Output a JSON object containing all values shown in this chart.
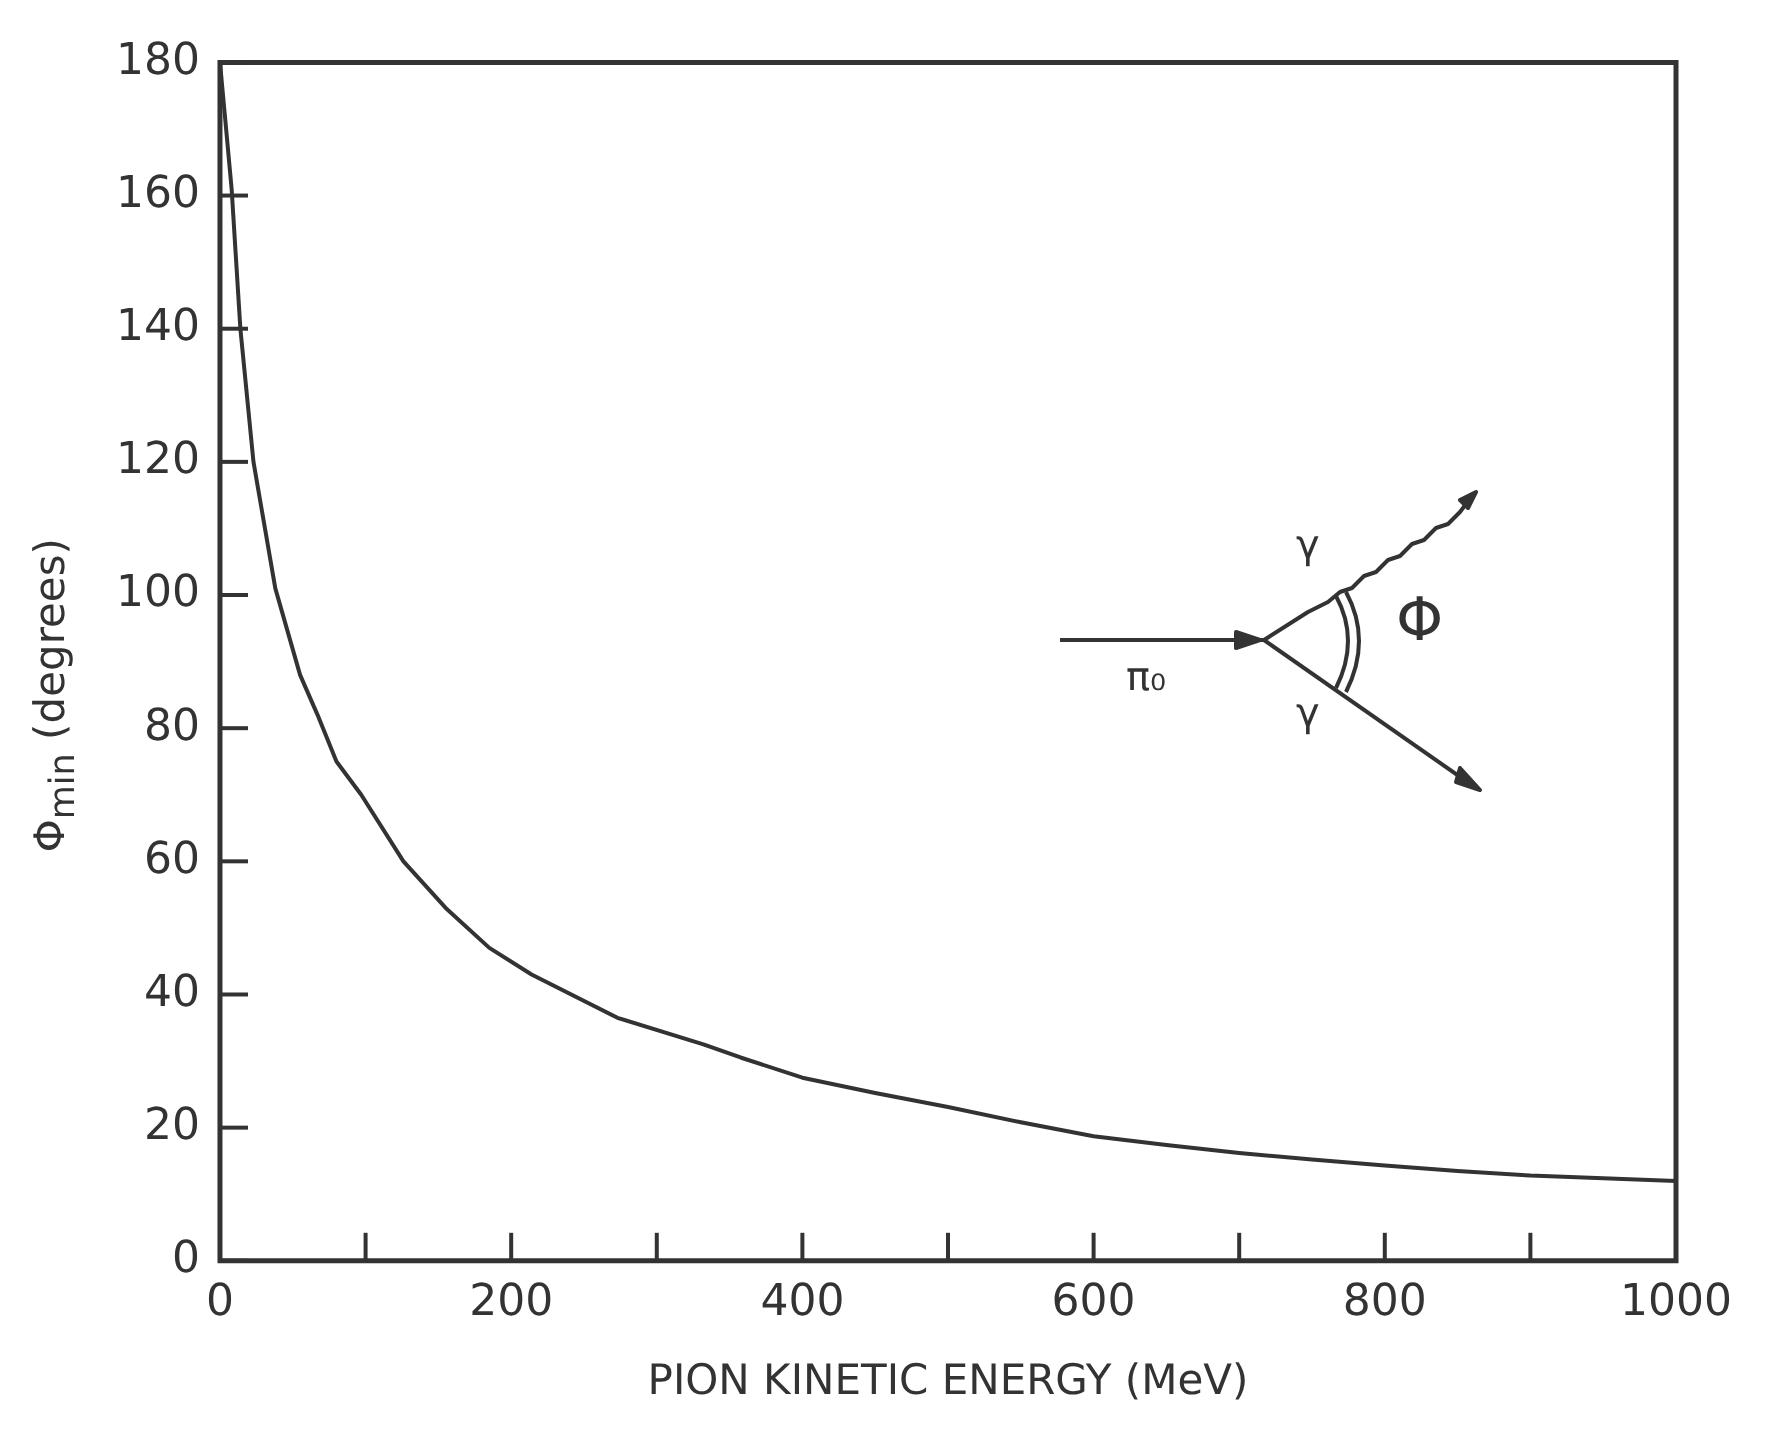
{
  "chart_data": {
    "type": "line",
    "xlabel": "PION KINETIC ENERGY (MeV)",
    "ylabel": "Φ$_{min}$ (degrees)",
    "annotations": [
      "π₀",
      "γ",
      "γ",
      "Φ"
    ],
    "x": [
      0,
      8,
      14,
      23,
      38,
      55,
      67,
      80,
      97,
      126,
      155,
      185,
      214,
      273,
      332,
      358,
      400,
      450,
      500,
      550,
      600,
      650,
      700,
      750,
      800,
      850,
      900,
      950,
      1000
    ],
    "series": [
      {
        "color": "#333333",
        "values": [
          180,
          161,
          140,
          120,
          101,
          88,
          82,
          75,
          70,
          60,
          53,
          47,
          43,
          36.5,
          32.5,
          30.5,
          27.5,
          25.2,
          23.1,
          20.8,
          18.7,
          17.4,
          16.2,
          15.2,
          14.3,
          13.5,
          12.8,
          12.4,
          12
        ]
      }
    ],
    "xlim": [
      0,
      1000
    ],
    "xticks": [
      0,
      {
        "value": 100,
        "label": null
      },
      200,
      {
        "value": 300,
        "label": null
      },
      400,
      {
        "value": 500,
        "label": null
      },
      600,
      {
        "value": 700,
        "label": null
      },
      800,
      {
        "value": 900,
        "label": null
      },
      1000
    ],
    "ylim": [
      0,
      180
    ],
    "yticks": [
      0,
      20,
      40,
      60,
      80,
      100,
      120,
      140,
      160,
      180
    ],
    "grid": false,
    "legend": false,
    "marker": "none",
    "line_style": "solid"
  }
}
